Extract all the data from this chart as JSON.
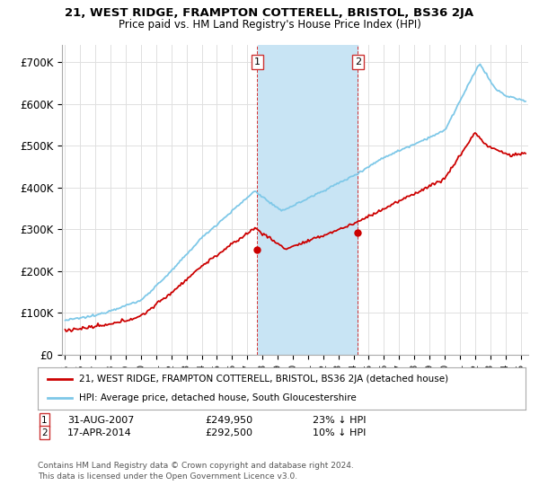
{
  "title1": "21, WEST RIDGE, FRAMPTON COTTERELL, BRISTOL, BS36 2JA",
  "title2": "Price paid vs. HM Land Registry's House Price Index (HPI)",
  "ylabel_ticks": [
    "£0",
    "£100K",
    "£200K",
    "£300K",
    "£400K",
    "£500K",
    "£600K",
    "£700K"
  ],
  "ytick_vals": [
    0,
    100000,
    200000,
    300000,
    400000,
    500000,
    600000,
    700000
  ],
  "ylim": [
    0,
    740000
  ],
  "xlim_start": 1994.8,
  "xlim_end": 2025.5,
  "hpi_color": "#7ec8e8",
  "price_color": "#cc0000",
  "marker_color": "#cc0000",
  "shaded_color": "#c8e4f4",
  "transaction1_x": 2007.664,
  "transaction1_y": 249950,
  "transaction2_x": 2014.29,
  "transaction2_y": 292500,
  "transaction1_label": "1",
  "transaction2_label": "2",
  "legend_line1": "21, WEST RIDGE, FRAMPTON COTTERELL, BRISTOL, BS36 2JA (detached house)",
  "legend_line2": "HPI: Average price, detached house, South Gloucestershire",
  "annotation1_date": "31-AUG-2007",
  "annotation1_price": "£249,950",
  "annotation1_hpi": "23% ↓ HPI",
  "annotation2_date": "17-APR-2014",
  "annotation2_price": "£292,500",
  "annotation2_hpi": "10% ↓ HPI",
  "footnote": "Contains HM Land Registry data © Crown copyright and database right 2024.\nThis data is licensed under the Open Government Licence v3.0.",
  "bg_color": "#ffffff",
  "grid_color": "#e0e0e0"
}
